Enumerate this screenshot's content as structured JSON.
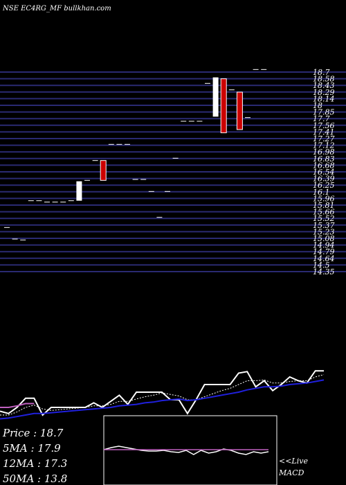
{
  "header": {
    "title": "NSE EC4RG_MF bullkhan.com"
  },
  "price_axis": {
    "labels": [
      "18.7",
      "18.58",
      "18.43",
      "18.29",
      "18.14",
      "18",
      "17.85",
      "17.7",
      "17.56",
      "17.41",
      "17.27",
      "17.12",
      "16.98",
      "16.83",
      "16.68",
      "16.54",
      "16.39",
      "16.25",
      "16.1",
      "15.96",
      "15.81",
      "15.66",
      "15.52",
      "15.37",
      "15.23",
      "15.08",
      "14.94",
      "14.79",
      "14.64",
      "14.5",
      "14.35"
    ]
  },
  "chart_data": [
    {
      "type": "candlestick",
      "title": "NSE EC4RG_MF bullkhan.com",
      "ylim": [
        14.3,
        18.8
      ],
      "grid": true,
      "candles": [
        {
          "o": 15.3,
          "h": 15.3,
          "l": 15.3,
          "c": 15.3
        },
        {
          "o": 15.05,
          "h": 15.05,
          "l": 15.05,
          "c": 15.05
        },
        {
          "o": 15.03,
          "h": 15.03,
          "l": 15.03,
          "c": 15.03
        },
        {
          "o": 15.88,
          "h": 15.88,
          "l": 15.88,
          "c": 15.88
        },
        {
          "o": 15.88,
          "h": 15.88,
          "l": 15.88,
          "c": 15.88
        },
        {
          "o": 15.85,
          "h": 15.85,
          "l": 15.85,
          "c": 15.85
        },
        {
          "o": 15.85,
          "h": 15.85,
          "l": 15.85,
          "c": 15.85
        },
        {
          "o": 15.85,
          "h": 15.85,
          "l": 15.85,
          "c": 15.85
        },
        {
          "o": 15.88,
          "h": 15.88,
          "l": 15.88,
          "c": 15.88
        },
        {
          "o": 15.88,
          "h": 16.3,
          "l": 15.88,
          "c": 16.3
        },
        {
          "o": 16.32,
          "h": 16.32,
          "l": 16.32,
          "c": 16.32
        },
        {
          "o": 16.75,
          "h": 16.75,
          "l": 16.75,
          "c": 16.75
        },
        {
          "o": 16.75,
          "h": 16.75,
          "l": 16.32,
          "c": 16.32
        },
        {
          "o": 17.1,
          "h": 17.1,
          "l": 17.1,
          "c": 17.1
        },
        {
          "o": 17.1,
          "h": 17.1,
          "l": 17.1,
          "c": 17.1
        },
        {
          "o": 17.1,
          "h": 17.1,
          "l": 17.1,
          "c": 17.1
        },
        {
          "o": 16.34,
          "h": 16.34,
          "l": 16.34,
          "c": 16.34
        },
        {
          "o": 16.34,
          "h": 16.34,
          "l": 16.34,
          "c": 16.34
        },
        {
          "o": 16.08,
          "h": 16.08,
          "l": 16.08,
          "c": 16.08
        },
        {
          "o": 15.52,
          "h": 15.52,
          "l": 15.52,
          "c": 15.52
        },
        {
          "o": 16.08,
          "h": 16.08,
          "l": 16.08,
          "c": 16.08
        },
        {
          "o": 16.8,
          "h": 16.8,
          "l": 16.8,
          "c": 16.8
        },
        {
          "o": 17.6,
          "h": 17.6,
          "l": 17.6,
          "c": 17.6
        },
        {
          "o": 17.6,
          "h": 17.6,
          "l": 17.6,
          "c": 17.6
        },
        {
          "o": 17.6,
          "h": 17.6,
          "l": 17.6,
          "c": 17.6
        },
        {
          "o": 18.42,
          "h": 18.42,
          "l": 18.42,
          "c": 18.42
        },
        {
          "o": 17.7,
          "h": 18.55,
          "l": 17.7,
          "c": 18.55
        },
        {
          "o": 18.52,
          "h": 18.52,
          "l": 17.35,
          "c": 17.35
        },
        {
          "o": 18.28,
          "h": 18.28,
          "l": 18.28,
          "c": 18.28
        },
        {
          "o": 18.23,
          "h": 18.23,
          "l": 17.42,
          "c": 17.42
        },
        {
          "o": 17.68,
          "h": 17.68,
          "l": 17.68,
          "c": 17.68
        },
        {
          "o": 18.72,
          "h": 18.72,
          "l": 18.72,
          "c": 18.72
        },
        {
          "o": 18.72,
          "h": 18.72,
          "l": 18.72,
          "c": 18.72
        }
      ]
    },
    {
      "type": "line",
      "ylim": [
        0,
        1
      ],
      "series": [
        {
          "color": "#ffffff",
          "values": [
            0.15,
            0.12,
            0.2,
            0.32,
            0.32,
            0.1,
            0.2,
            0.2,
            0.2,
            0.2,
            0.2,
            0.26,
            0.2,
            0.28,
            0.36,
            0.24,
            0.4,
            0.4,
            0.4,
            0.4,
            0.3,
            0.3,
            0.12,
            0.3,
            0.5,
            0.5,
            0.5,
            0.5,
            0.65,
            0.67,
            0.47,
            0.55,
            0.42,
            0.5,
            0.6,
            0.55,
            0.52,
            0.68,
            0.68
          ]
        },
        {
          "color": "#ffffff",
          "dashed": true,
          "values": [
            0.1,
            0.1,
            0.14,
            0.2,
            0.23,
            0.18,
            0.16,
            0.17,
            0.18,
            0.19,
            0.2,
            0.22,
            0.22,
            0.24,
            0.28,
            0.28,
            0.31,
            0.34,
            0.36,
            0.39,
            0.37,
            0.35,
            0.3,
            0.3,
            0.34,
            0.38,
            0.42,
            0.45,
            0.5,
            0.55,
            0.55,
            0.56,
            0.52,
            0.52,
            0.54,
            0.55,
            0.55,
            0.6,
            0.63
          ]
        },
        {
          "color": "#2020dd",
          "values": [
            0.05,
            0.06,
            0.08,
            0.1,
            0.12,
            0.12,
            0.13,
            0.14,
            0.15,
            0.16,
            0.17,
            0.18,
            0.19,
            0.2,
            0.22,
            0.23,
            0.24,
            0.26,
            0.27,
            0.29,
            0.3,
            0.31,
            0.29,
            0.3,
            0.32,
            0.34,
            0.36,
            0.38,
            0.4,
            0.43,
            0.45,
            0.47,
            0.47,
            0.48,
            0.5,
            0.51,
            0.52,
            0.54,
            0.56
          ]
        },
        {
          "color": "#c060c0",
          "values": [
            0.2,
            0.2,
            0.22,
            0.25,
            0.25
          ]
        }
      ]
    },
    {
      "type": "line",
      "title": "MACD",
      "ylim": [
        -1,
        1
      ],
      "series": [
        {
          "color": "#ffffff",
          "values": [
            0.05,
            0.2,
            0.3,
            0.2,
            0.1,
            0.0,
            -0.05,
            -0.05,
            0.0,
            -0.1,
            -0.15,
            0.0,
            -0.3,
            0.0,
            -0.2,
            -0.1,
            0.1,
            0.0,
            -0.2,
            -0.3,
            -0.1,
            -0.2,
            -0.1
          ]
        },
        {
          "color": "#c060c0",
          "values": [
            0.05,
            0.05,
            0.05,
            0.05,
            0.05,
            0.05,
            0.05,
            0.05,
            0.05,
            0.05,
            0.05,
            0.05,
            0.05,
            0.05,
            0.05,
            0.05,
            0.05,
            0.05,
            0.05,
            0.05,
            0.05,
            0.05,
            0.05
          ]
        }
      ]
    }
  ],
  "legend": {
    "price": "Price  :  18.7",
    "ma5": "5MA  :  17.9",
    "ma12": "12MA  :  17.3",
    "ma50": "50MA  :  13.8"
  },
  "macd_panel": {
    "live_label": "<<Live",
    "macd_label": "MACD"
  },
  "colors": {
    "background": "#000000",
    "grid_line": "#2a2a72",
    "bull_candle": "#ffffff",
    "bear_candle": "#cc0000",
    "ma_blue": "#2020dd",
    "ma_purple": "#c060c0"
  }
}
